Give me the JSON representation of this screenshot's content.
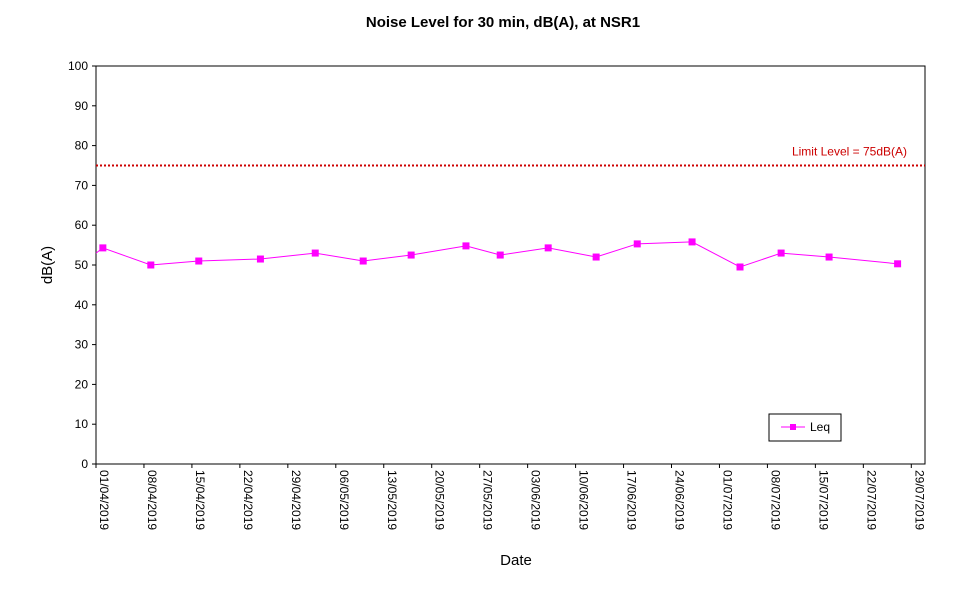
{
  "chart_data": {
    "type": "line",
    "title": "Noise Level for 30 min, dB(A), at NSR1",
    "xlabel": "Date",
    "ylabel": "dB(A)",
    "ylim": [
      0,
      100
    ],
    "yticks": [
      0,
      10,
      20,
      30,
      40,
      50,
      60,
      70,
      80,
      90,
      100
    ],
    "xlim": [
      "01/04/2019",
      "31/07/2019"
    ],
    "xticks": [
      "01/04/2019",
      "08/04/2019",
      "15/04/2019",
      "22/04/2019",
      "29/04/2019",
      "06/05/2019",
      "13/05/2019",
      "20/05/2019",
      "27/05/2019",
      "03/06/2019",
      "10/06/2019",
      "17/06/2019",
      "24/06/2019",
      "01/07/2019",
      "08/07/2019",
      "15/07/2019",
      "22/07/2019",
      "29/07/2019"
    ],
    "grid": false,
    "legend_position": "bottom-right",
    "series": [
      {
        "name": "Leq",
        "color": "#ff00ff",
        "marker": "square",
        "x": [
          "01/04/2019",
          "02/04/2019",
          "09/04/2019",
          "16/04/2019",
          "25/04/2019",
          "03/05/2019",
          "10/05/2019",
          "17/05/2019",
          "25/05/2019",
          "30/05/2019",
          "06/06/2019",
          "13/06/2019",
          "19/06/2019",
          "27/06/2019",
          "04/07/2019",
          "10/07/2019",
          "17/07/2019",
          "27/07/2019"
        ],
        "y": [
          53,
          54.3,
          50,
          51,
          51.5,
          53,
          51,
          52.5,
          54.8,
          52.5,
          54.3,
          52,
          55.3,
          55.8,
          49.5,
          53,
          52,
          50.3
        ],
        "marked": [
          false,
          true,
          true,
          true,
          true,
          true,
          true,
          true,
          true,
          true,
          true,
          true,
          true,
          true,
          true,
          true,
          true,
          true
        ]
      }
    ],
    "reference_lines": [
      {
        "y": 75,
        "label": "Limit Level  = 75dB(A)",
        "color": "#cc0000",
        "style": "dotted"
      }
    ]
  }
}
